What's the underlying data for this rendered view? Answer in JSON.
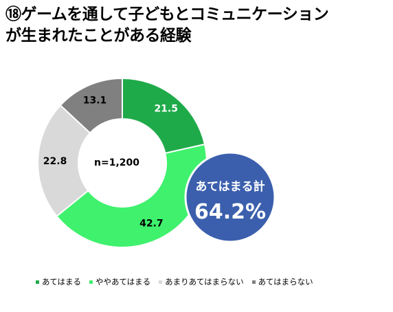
{
  "title": {
    "line1": "⑱ゲームを通して子どもとコミュニケーション",
    "line2": "が生まれたことがある経験"
  },
  "chart_data": {
    "type": "pie",
    "variant": "donut",
    "center_label": "n=1,200",
    "categories": [
      "あてはまる",
      "ややあてはまる",
      "あまりあてはまらない",
      "あてはまらない"
    ],
    "values": [
      21.5,
      42.7,
      22.8,
      13.1
    ],
    "value_labels": [
      "21.5",
      "42.7",
      "22.8",
      "13.1"
    ],
    "colors": [
      "#1faa4a",
      "#3ff16d",
      "#d9d9d9",
      "#808080"
    ],
    "label_colors": [
      "#ffffff",
      "#000000",
      "#000000",
      "#000000"
    ],
    "legend_position": "bottom",
    "callout": {
      "label": "あてはまる計",
      "value": "64.2%",
      "color": "#3b5fad"
    }
  }
}
